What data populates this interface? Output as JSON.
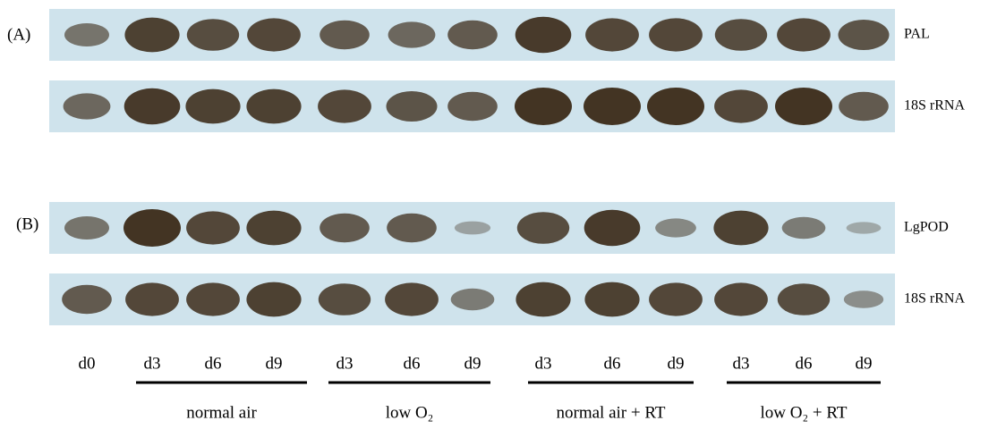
{
  "panels": [
    {
      "label": "(A)",
      "blots": [
        {
          "label": "PAL"
        },
        {
          "label": "18S rRNA"
        }
      ]
    },
    {
      "label": "(B)",
      "blots": [
        {
          "label": "LgPOD"
        },
        {
          "label": "18S rRNA"
        }
      ]
    }
  ],
  "lanes": [
    "d0",
    "d3",
    "d6",
    "d9",
    "d3",
    "d6",
    "d9",
    "d3",
    "d6",
    "d9",
    "d3",
    "d6",
    "d9"
  ],
  "groups": [
    {
      "label": "normal air"
    },
    {
      "label": "low O₂"
    },
    {
      "label": "normal air + RT"
    },
    {
      "label": "low O₂ + RT"
    }
  ]
}
